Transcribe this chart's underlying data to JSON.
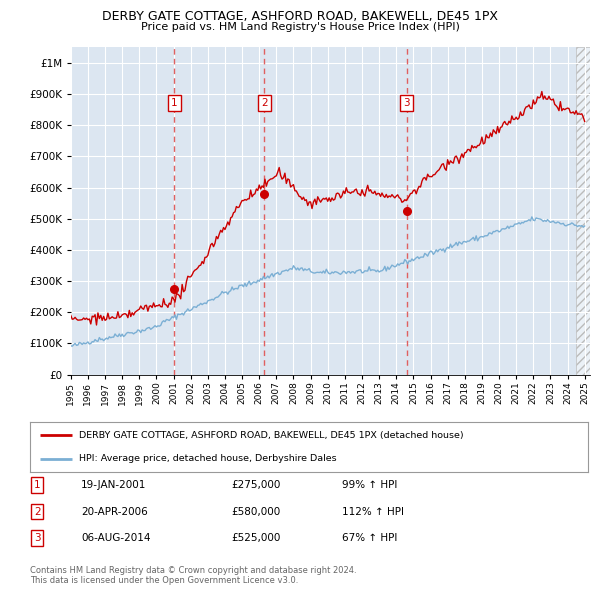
{
  "title": "DERBY GATE COTTAGE, ASHFORD ROAD, BAKEWELL, DE45 1PX",
  "subtitle": "Price paid vs. HM Land Registry's House Price Index (HPI)",
  "legend_line1": "DERBY GATE COTTAGE, ASHFORD ROAD, BAKEWELL, DE45 1PX (detached house)",
  "legend_line2": "HPI: Average price, detached house, Derbyshire Dales",
  "footnote1": "Contains HM Land Registry data © Crown copyright and database right 2024.",
  "footnote2": "This data is licensed under the Open Government Licence v3.0.",
  "transactions": [
    {
      "label": "1",
      "date": "19-JAN-2001",
      "price": "£275,000",
      "pct": "99% ↑ HPI",
      "x_year": 2001.05,
      "y_val": 275000
    },
    {
      "label": "2",
      "date": "20-APR-2006",
      "price": "£580,000",
      "pct": "112% ↑ HPI",
      "x_year": 2006.3,
      "y_val": 580000
    },
    {
      "label": "3",
      "date": "06-AUG-2014",
      "price": "£525,000",
      "pct": "67% ↑ HPI",
      "x_year": 2014.6,
      "y_val": 525000
    }
  ],
  "ylim": [
    0,
    1050000
  ],
  "xlim_start": 1995.0,
  "xlim_end": 2025.3,
  "background_color": "#ffffff",
  "plot_bg_color": "#dce6f1",
  "grid_color": "#ffffff",
  "red_line_color": "#cc0000",
  "blue_line_color": "#7bafd4",
  "vline_color": "#e06060",
  "title_color": "#000000",
  "footnote_color": "#666666"
}
